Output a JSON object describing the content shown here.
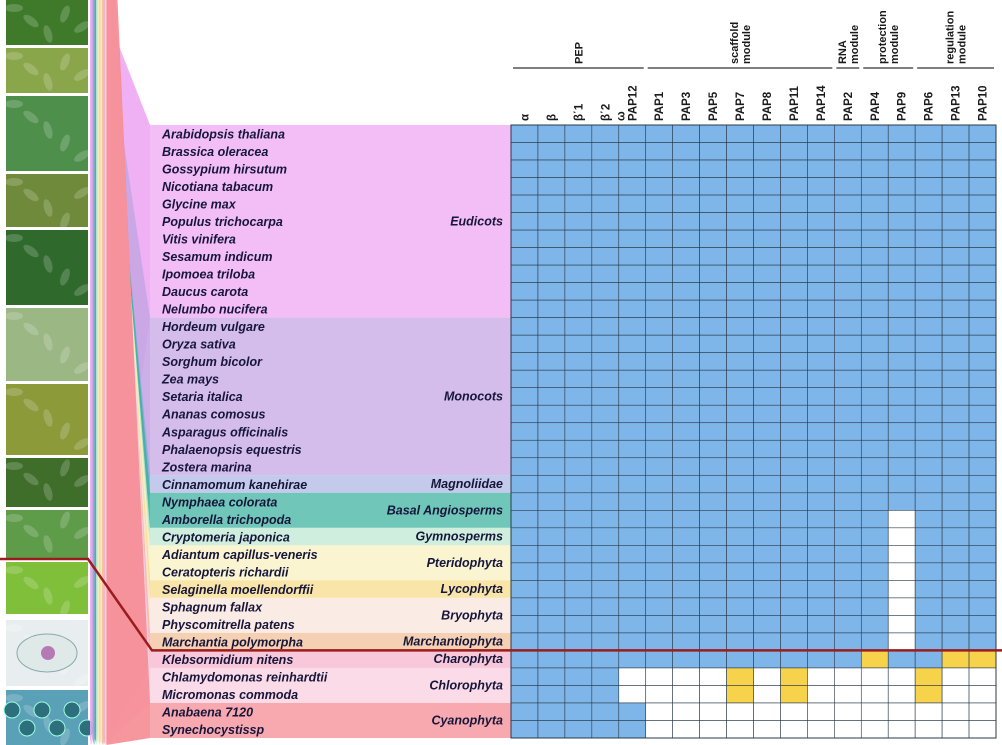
{
  "chart_data": {
    "type": "heatmap",
    "title": "",
    "module_headers": [
      {
        "label": [
          "PEP"
        ],
        "cols": [
          0,
          4
        ]
      },
      {
        "label": [
          "scaffold",
          "module"
        ],
        "cols": [
          5,
          11
        ]
      },
      {
        "label": [
          "RNA",
          "module"
        ],
        "cols": [
          12,
          12
        ]
      },
      {
        "label": [
          "protection",
          "module"
        ],
        "cols": [
          13,
          14
        ]
      },
      {
        "label": [
          "regulation",
          "module"
        ],
        "cols": [
          15,
          17
        ]
      }
    ],
    "columns": [
      "α",
      "β",
      "β΄1",
      "β΄2",
      "ω PAP12",
      "PAP1",
      "PAP3",
      "PAP5",
      "PAP7",
      "PAP8",
      "PAP11",
      "PAP14",
      "PAP2",
      "PAP4",
      "PAP9",
      "PAP6",
      "PAP13",
      "PAP10"
    ],
    "species": [
      "Arabidopsis thaliana",
      "Brassica oleracea",
      "Gossypium hirsutum",
      "Nicotiana tabacum",
      "Glycine max",
      "Populus trichocarpa",
      "Vitis vinifera",
      "Sesamum indicum",
      "Ipomoea triloba",
      "Daucus carota",
      "Nelumbo nucifera",
      "Hordeum vulgare",
      "Oryza sativa",
      "Sorghum bicolor",
      "Zea mays",
      "Setaria italica",
      "Ananas comosus",
      "Asparagus officinalis",
      "Phalaenopsis equestris",
      "Zostera marina",
      "Cinnamomum kanehirae",
      "Nymphaea colorata",
      "Amborella trichopoda",
      "Cryptomeria japonica",
      "Adiantum capillus-veneris",
      "Ceratopteris richardii",
      "Selaginella moellendorffii",
      "Sphagnum fallax",
      "Physcomitrella patens",
      "Marchantia polymorpha",
      "Klebsormidium nitens",
      "Chlamydomonas reinhardtii",
      "Micromonas commoda",
      "Anabaena 7120",
      "Synechocystissp"
    ],
    "groups": [
      {
        "name": "Eudicots",
        "rows": [
          0,
          10
        ],
        "color": "#eda8f2"
      },
      {
        "name": "Monocots",
        "rows": [
          11,
          19
        ],
        "color": "#c6a6e4"
      },
      {
        "name": "Magnoliidae",
        "rows": [
          20,
          20
        ],
        "color": "#b0b8e6"
      },
      {
        "name": "Basal Angiosperms",
        "rows": [
          21,
          22
        ],
        "color": "#3fb3a2"
      },
      {
        "name": "Gymnosperms",
        "rows": [
          23,
          23
        ],
        "color": "#bfe8d2"
      },
      {
        "name": "Pteridophyta",
        "rows": [
          24,
          25
        ],
        "color": "#f8f0c2"
      },
      {
        "name": "Lycophyta",
        "rows": [
          26,
          26
        ],
        "color": "#f5dc8a"
      },
      {
        "name": "Bryophyta",
        "rows": [
          27,
          28
        ],
        "color": "#f9e4dc"
      },
      {
        "name": "Marchantiophyta",
        "rows": [
          29,
          29
        ],
        "color": "#f1c09a"
      },
      {
        "name": "Charophyta",
        "rows": [
          30,
          30
        ],
        "color": "#f6b4cc"
      },
      {
        "name": "Chlorophyta",
        "rows": [
          31,
          32
        ],
        "color": "#f9cfe0"
      },
      {
        "name": "Cyanophyta",
        "rows": [
          33,
          34
        ],
        "color": "#f58c94"
      }
    ],
    "legend_states": {
      "1": "present",
      "0": "absent",
      "2": "partial"
    },
    "state_colors": {
      "1": "#7fb6ea",
      "0": "#ffffff",
      "2": "#f7d34c"
    },
    "matrix": [
      "111111111111111111",
      "111111111111111111",
      "111111111111111111",
      "111111111111111111",
      "111111111111111111",
      "111111111111111111",
      "111111111111111111",
      "111111111111111111",
      "111111111111111111",
      "111111111111111111",
      "111111111111111111",
      "111111111111111111",
      "111111111111111111",
      "111111111111111111",
      "111111111111111111",
      "111111111111111111",
      "111111111111111111",
      "111111111111111111",
      "111111111111111111",
      "111111111111111111",
      "111111111111111111",
      "111111111111111111",
      "111111111111110111",
      "111111111111110111",
      "111111111111110111",
      "111111111111110111",
      "111111111111110111",
      "111111111111110111",
      "111111111111110111",
      "111111111111110111",
      "111111111111121122",
      "111100002020000200",
      "111100002020000200",
      "111110000000000000",
      "111110000000000000"
    ],
    "divider_color": "#9b1c1c",
    "photo_labels": [
      "photo-1",
      "photo-2",
      "photo-3",
      "photo-4",
      "photo-5",
      "photo-6",
      "photo-7",
      "photo-8",
      "photo-9",
      "photo-10",
      "photo-11",
      "photo-12"
    ]
  }
}
